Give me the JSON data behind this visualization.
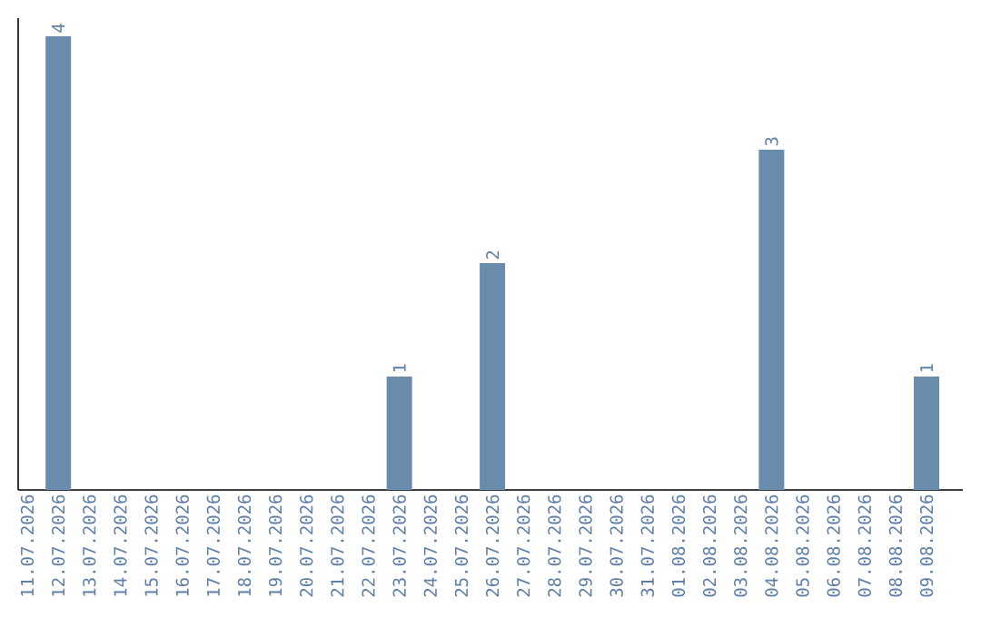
{
  "chart_data": {
    "type": "bar",
    "categories": [
      "11.07.2026",
      "12.07.2026",
      "13.07.2026",
      "14.07.2026",
      "15.07.2026",
      "16.07.2026",
      "17.07.2026",
      "18.07.2026",
      "19.07.2026",
      "20.07.2026",
      "21.07.2026",
      "22.07.2026",
      "23.07.2026",
      "24.07.2026",
      "25.07.2026",
      "26.07.2026",
      "27.07.2026",
      "28.07.2026",
      "29.07.2026",
      "30.07.2026",
      "31.07.2026",
      "01.08.2026",
      "02.08.2026",
      "03.08.2026",
      "04.08.2026",
      "05.08.2026",
      "06.08.2026",
      "07.08.2026",
      "08.08.2026",
      "09.08.2026"
    ],
    "values": [
      0,
      4,
      0,
      0,
      0,
      0,
      0,
      0,
      0,
      0,
      0,
      0,
      1,
      0,
      0,
      2,
      0,
      0,
      0,
      0,
      0,
      0,
      0,
      0,
      3,
      0,
      0,
      0,
      0,
      1
    ],
    "value_labels": [
      null,
      "4",
      null,
      null,
      null,
      null,
      null,
      null,
      null,
      null,
      null,
      null,
      "1",
      null,
      null,
      "2",
      null,
      null,
      null,
      null,
      null,
      null,
      null,
      null,
      "3",
      null,
      null,
      null,
      null,
      "1"
    ],
    "color": "#6a8cac",
    "tick_labels": "x",
    "grid": false
  }
}
